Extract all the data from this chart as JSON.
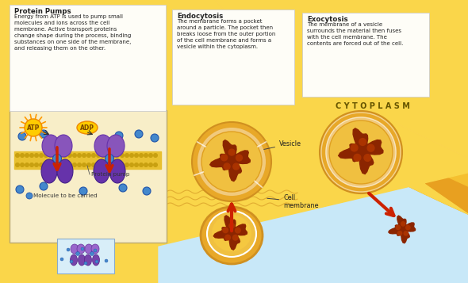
{
  "bg_color": "#FAD64A",
  "light_blue": "#C8E8F8",
  "cytoplasm_label": "C Y T O P L A S M",
  "box1_title": "Protein Pumps",
  "box1_text": "Energy from ATP is used to pump small\nmolecules and ions across the cell\nmembrane. Active transport proteins\nchange shape during the process, binding\nsubstances on one side of the membrane,\nand releasing them on the other.",
  "box2_title": "Endocytosis",
  "box2_text": "The membrane forms a pocket\naround a particle. The pocket then\nbreaks loose from the outer portion\nof the cell membrane and forms a\nvesicle within the cytoplasm.",
  "box3_title": "Exocytosis",
  "box3_text": "The membrane of a vesicle\nsurrounds the material then fuses\nwith the cell membrane. The\ncontents are forced out of the cell.",
  "vesicle_label": "Vesicle",
  "cell_membrane_label": "Cell\nmembrane",
  "protein_pump_label": "Protein pump",
  "molecule_label": "Molecule to be carried",
  "purple_color": "#8855BB",
  "purple_dark": "#6633AA",
  "orange_membrane": "#E8A828",
  "orange_light": "#F5C840",
  "orange_inner": "#F0C040",
  "brown_color": "#8B2500",
  "blue_dot_color": "#4488CC",
  "red_arrow_color": "#CC2200",
  "atp_color": "#FF8800",
  "text_dark": "#222222",
  "text_mid": "#444444"
}
